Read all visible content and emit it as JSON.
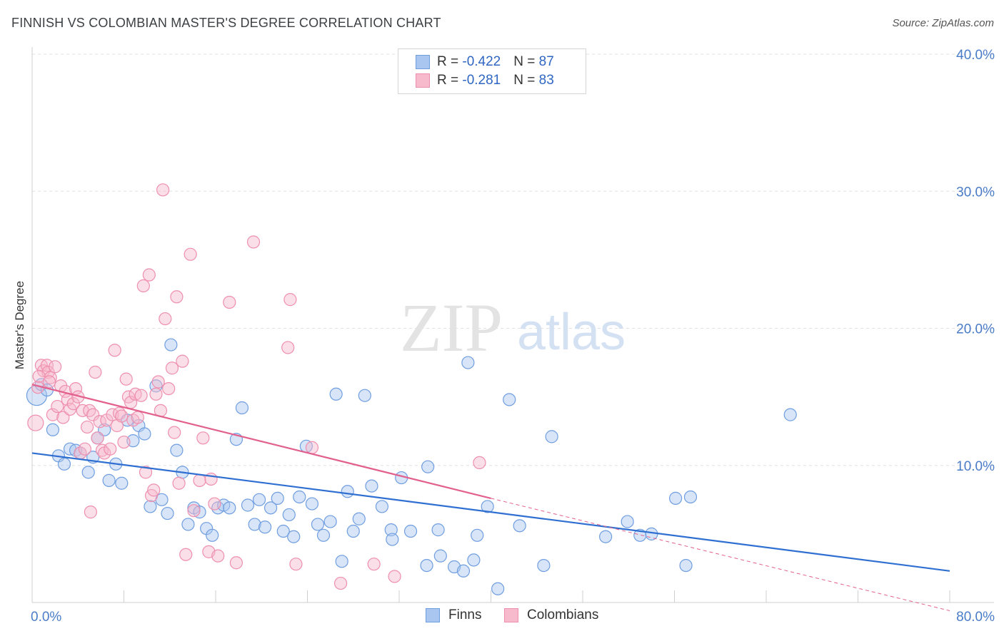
{
  "title": "FINNISH VS COLOMBIAN MASTER'S DEGREE CORRELATION CHART",
  "source": "Source: ZipAtlas.com",
  "watermark": {
    "zip": "ZIP",
    "atlas": "atlas"
  },
  "legend": {
    "rows": [
      {
        "r_label": "R = ",
        "r_value": "-0.422",
        "n_label": "N = ",
        "n_value": "87",
        "color": "#a8c6f0",
        "border": "#6f9ee0"
      },
      {
        "r_label": "R = ",
        "r_value": "-0.281",
        "n_label": "N = ",
        "n_value": "83",
        "color": "#f7b9cc",
        "border": "#ee8fae"
      }
    ]
  },
  "bottom_legend": [
    {
      "label": "Finns",
      "color": "#a8c6f0",
      "border": "#6f9ee0"
    },
    {
      "label": "Colombians",
      "color": "#f7b9cc",
      "border": "#ee8fae"
    }
  ],
  "chart_data": {
    "type": "scatter",
    "title": "FINNISH VS COLOMBIAN MASTER'S DEGREE CORRELATION CHART",
    "xlabel": "",
    "ylabel": "Master's Degree",
    "xlim": [
      0,
      80
    ],
    "ylim": [
      0,
      40
    ],
    "x_tick_labels": [
      "0.0%",
      "80.0%"
    ],
    "y_tick_labels": [
      "10.0%",
      "20.0%",
      "30.0%",
      "40.0%"
    ],
    "y_ticks": [
      10,
      20,
      30,
      40
    ],
    "grid": true,
    "legend_position": "top-center",
    "series": [
      {
        "name": "Finns",
        "color": "#6f9ee0",
        "fill": "#a8c6f0",
        "trend": {
          "x": [
            0,
            80
          ],
          "y": [
            10.9,
            2.3
          ],
          "color": "#2f6fd1"
        },
        "points": [
          [
            0.4,
            15.1
          ],
          [
            0.8,
            15.9
          ],
          [
            1.3,
            15.5
          ],
          [
            1.8,
            12.6
          ],
          [
            2.3,
            10.7
          ],
          [
            2.8,
            10.1
          ],
          [
            3.3,
            11.2
          ],
          [
            3.8,
            11.1
          ],
          [
            4.2,
            10.9
          ],
          [
            4.9,
            9.5
          ],
          [
            5.3,
            10.6
          ],
          [
            5.7,
            12.0
          ],
          [
            6.3,
            12.6
          ],
          [
            6.7,
            8.9
          ],
          [
            7.3,
            10.1
          ],
          [
            7.8,
            8.7
          ],
          [
            8.3,
            13.3
          ],
          [
            8.8,
            11.8
          ],
          [
            9.3,
            12.9
          ],
          [
            9.8,
            12.3
          ],
          [
            10.3,
            7.0
          ],
          [
            10.8,
            15.8
          ],
          [
            11.3,
            7.5
          ],
          [
            11.8,
            6.5
          ],
          [
            12.1,
            18.8
          ],
          [
            12.6,
            11.1
          ],
          [
            13.1,
            9.5
          ],
          [
            13.6,
            5.7
          ],
          [
            14.1,
            6.9
          ],
          [
            14.6,
            6.6
          ],
          [
            15.2,
            5.4
          ],
          [
            15.7,
            4.9
          ],
          [
            16.2,
            6.9
          ],
          [
            16.7,
            7.1
          ],
          [
            17.2,
            6.9
          ],
          [
            17.8,
            11.9
          ],
          [
            18.3,
            14.2
          ],
          [
            18.8,
            7.1
          ],
          [
            19.4,
            5.7
          ],
          [
            19.8,
            7.5
          ],
          [
            20.3,
            5.5
          ],
          [
            20.8,
            6.9
          ],
          [
            21.4,
            7.6
          ],
          [
            21.9,
            5.2
          ],
          [
            22.4,
            6.4
          ],
          [
            22.8,
            4.8
          ],
          [
            23.3,
            7.7
          ],
          [
            23.9,
            11.4
          ],
          [
            24.4,
            7.2
          ],
          [
            24.9,
            5.7
          ],
          [
            25.4,
            4.9
          ],
          [
            26.0,
            5.9
          ],
          [
            26.5,
            15.2
          ],
          [
            27.0,
            3.0
          ],
          [
            27.5,
            8.1
          ],
          [
            28.0,
            5.2
          ],
          [
            28.5,
            6.1
          ],
          [
            29.0,
            15.1
          ],
          [
            29.6,
            8.5
          ],
          [
            30.5,
            7.0
          ],
          [
            31.3,
            5.3
          ],
          [
            31.4,
            4.6
          ],
          [
            32.2,
            9.1
          ],
          [
            33.0,
            5.2
          ],
          [
            34.4,
            2.7
          ],
          [
            34.5,
            9.9
          ],
          [
            35.4,
            5.3
          ],
          [
            35.6,
            3.4
          ],
          [
            36.8,
            2.6
          ],
          [
            37.6,
            2.3
          ],
          [
            38.0,
            17.5
          ],
          [
            38.5,
            3.1
          ],
          [
            38.8,
            4.9
          ],
          [
            39.7,
            7.0
          ],
          [
            40.6,
            1.0
          ],
          [
            41.6,
            14.8
          ],
          [
            42.5,
            5.6
          ],
          [
            44.6,
            2.7
          ],
          [
            45.3,
            12.1
          ],
          [
            50.0,
            4.8
          ],
          [
            51.9,
            5.9
          ],
          [
            53.0,
            4.9
          ],
          [
            56.1,
            7.6
          ],
          [
            57.0,
            2.7
          ],
          [
            57.4,
            7.7
          ],
          [
            66.1,
            13.7
          ],
          [
            54.0,
            5.0
          ]
        ]
      },
      {
        "name": "Colombians",
        "color": "#ee8fae",
        "fill": "#f7b9cc",
        "trend": {
          "x": [
            0,
            40
          ],
          "y": [
            15.9,
            7.6
          ],
          "color": "#e2608d",
          "dash_x": [
            40,
            80
          ],
          "dash_y": [
            7.6,
            -0.6
          ]
        },
        "points": [
          [
            0.3,
            13.1
          ],
          [
            0.5,
            15.7
          ],
          [
            0.8,
            17.3
          ],
          [
            1.0,
            16.9
          ],
          [
            1.3,
            17.3
          ],
          [
            1.4,
            16.8
          ],
          [
            1.6,
            16.4
          ],
          [
            1.8,
            13.7
          ],
          [
            2.0,
            17.2
          ],
          [
            2.2,
            14.3
          ],
          [
            2.5,
            15.8
          ],
          [
            2.7,
            13.5
          ],
          [
            2.9,
            15.4
          ],
          [
            3.1,
            14.8
          ],
          [
            3.3,
            14.1
          ],
          [
            3.6,
            14.5
          ],
          [
            3.8,
            15.6
          ],
          [
            4.0,
            15.0
          ],
          [
            4.2,
            10.9
          ],
          [
            4.4,
            14.0
          ],
          [
            4.6,
            11.2
          ],
          [
            4.8,
            12.8
          ],
          [
            5.0,
            14.0
          ],
          [
            5.1,
            6.6
          ],
          [
            5.3,
            13.7
          ],
          [
            5.5,
            16.8
          ],
          [
            5.7,
            12.0
          ],
          [
            5.9,
            13.2
          ],
          [
            6.1,
            11.1
          ],
          [
            6.3,
            10.9
          ],
          [
            6.5,
            13.3
          ],
          [
            6.8,
            11.2
          ],
          [
            7.0,
            13.7
          ],
          [
            7.2,
            18.4
          ],
          [
            7.4,
            12.9
          ],
          [
            7.6,
            13.8
          ],
          [
            7.8,
            13.6
          ],
          [
            8.0,
            11.7
          ],
          [
            8.2,
            16.3
          ],
          [
            8.4,
            15.0
          ],
          [
            8.6,
            14.6
          ],
          [
            8.8,
            13.3
          ],
          [
            9.0,
            15.2
          ],
          [
            9.2,
            13.5
          ],
          [
            9.5,
            15.1
          ],
          [
            9.7,
            23.1
          ],
          [
            9.9,
            9.5
          ],
          [
            10.2,
            23.9
          ],
          [
            10.4,
            7.8
          ],
          [
            10.6,
            8.2
          ],
          [
            10.8,
            15.2
          ],
          [
            11.0,
            16.1
          ],
          [
            11.2,
            14.0
          ],
          [
            11.4,
            30.1
          ],
          [
            11.6,
            20.7
          ],
          [
            11.9,
            15.6
          ],
          [
            12.2,
            17.1
          ],
          [
            12.4,
            12.4
          ],
          [
            12.6,
            22.3
          ],
          [
            12.8,
            8.7
          ],
          [
            13.1,
            17.6
          ],
          [
            13.4,
            3.5
          ],
          [
            13.8,
            25.4
          ],
          [
            14.1,
            6.7
          ],
          [
            14.6,
            8.9
          ],
          [
            14.9,
            12.0
          ],
          [
            15.4,
            3.7
          ],
          [
            15.6,
            9.0
          ],
          [
            15.9,
            7.2
          ],
          [
            16.2,
            3.4
          ],
          [
            17.2,
            21.9
          ],
          [
            17.8,
            2.9
          ],
          [
            19.3,
            26.3
          ],
          [
            22.3,
            18.6
          ],
          [
            22.5,
            22.1
          ],
          [
            23.0,
            2.8
          ],
          [
            24.4,
            11.3
          ],
          [
            26.9,
            1.4
          ],
          [
            29.8,
            2.8
          ],
          [
            31.6,
            1.9
          ],
          [
            39.0,
            10.2
          ],
          [
            0.6,
            16.5
          ],
          [
            1.5,
            16.1
          ]
        ]
      }
    ]
  }
}
